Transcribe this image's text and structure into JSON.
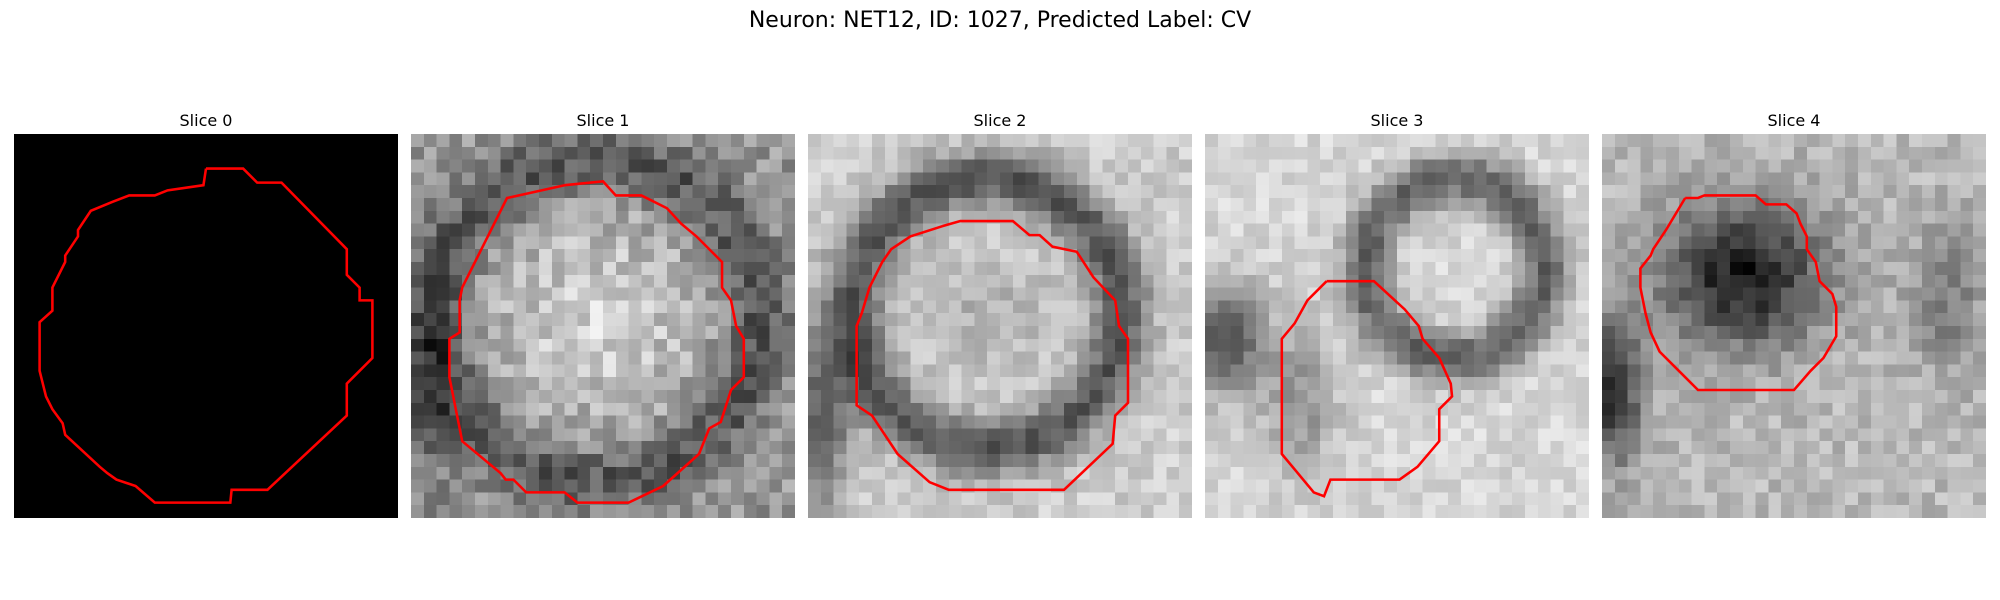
{
  "figure": {
    "title": "Neuron: NET12, ID: 1027, Predicted Label: CV"
  },
  "slices": [
    {
      "label": "Slice 0",
      "image": "black blank field with red segmentation outline"
    },
    {
      "label": "Slice 1",
      "image": "grayscale noisy microscopy patch with red outline"
    },
    {
      "label": "Slice 2",
      "image": "grayscale microscopy patch with dark ring and red outline"
    },
    {
      "label": "Slice 3",
      "image": "grayscale microscopy patch with dark oval and red outline"
    },
    {
      "label": "Slice 4",
      "image": "grayscale microscopy patch with dark blob and red outline"
    }
  ],
  "colors": {
    "contour": "#ff0000",
    "background": "#ffffff"
  }
}
